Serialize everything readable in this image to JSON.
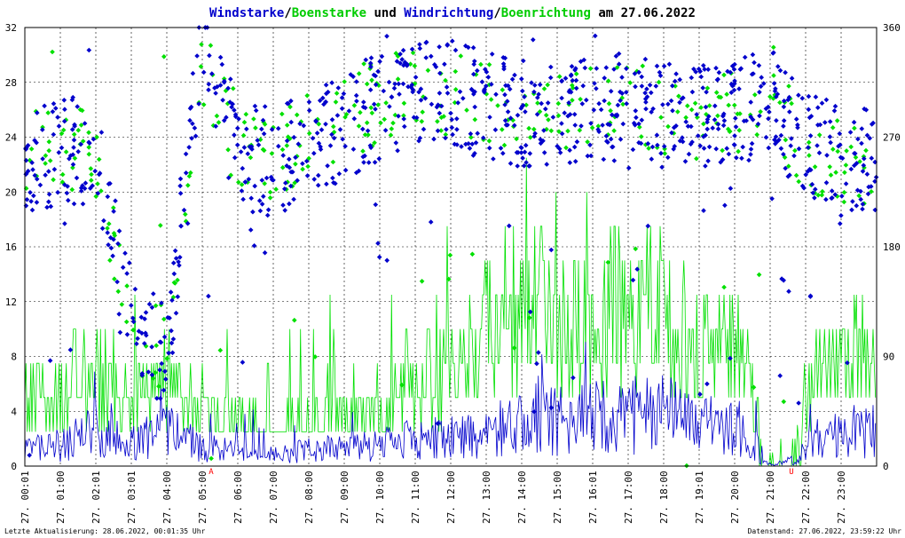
{
  "chart_data": {
    "type": "line",
    "title_parts": [
      {
        "text": "Windstarke",
        "color": "#0000cc"
      },
      {
        "text": "/",
        "color": "#000000"
      },
      {
        "text": "Boenstarke",
        "color": "#00cc00"
      },
      {
        "text": " und ",
        "color": "#000000"
      },
      {
        "text": "Windrichtung",
        "color": "#0000cc"
      },
      {
        "text": "/",
        "color": "#000000"
      },
      {
        "text": "Boenrichtung",
        "color": "#00cc00"
      },
      {
        "text": " am 27.06.2022",
        "color": "#000000"
      }
    ],
    "ylim": [
      0,
      32
    ],
    "y_ticks": [
      "0",
      "4",
      "8",
      "12",
      "16",
      "20",
      "24",
      "28",
      "32"
    ],
    "y2lim": [
      0,
      360
    ],
    "y2_ticks": [
      "0",
      "90",
      "180",
      "270",
      "360"
    ],
    "x_ticks": [
      "27. 00:01",
      "27. 01:00",
      "27. 02:01",
      "27. 03:01",
      "27. 04:00",
      "27. 05:00",
      "27. 06:00",
      "27. 07:00",
      "27. 08:00",
      "27. 09:00",
      "27. 10:00",
      "27. 11:00",
      "27. 12:00",
      "27. 13:00",
      "27. 14:00",
      "27. 15:00",
      "27. 16:01",
      "27. 17:00",
      "27. 18:00",
      "27. 19:01",
      "27. 20:00",
      "27. 21:00",
      "27. 22:00",
      "27. 23:00"
    ],
    "markers": [
      {
        "label": "A",
        "hour": 5.25,
        "color": "#ff0000"
      },
      {
        "label": "U",
        "hour": 21.6,
        "color": "#ff0000"
      }
    ],
    "grid": true,
    "colors": {
      "wind": "#0000cc",
      "gust": "#00e000"
    },
    "series": [
      {
        "name": "Windstarke",
        "kind": "line",
        "color": "#0000cc",
        "hourly_typical": [
          1.5,
          1.5,
          2.5,
          1.5,
          2.5,
          1.5,
          1.0,
          0.8,
          1.2,
          1.3,
          1.5,
          2.0,
          2.0,
          2.8,
          3.5,
          3.5,
          3.5,
          3.5,
          3.8,
          3.0,
          3.0,
          0.5,
          2.0,
          2.5
        ]
      },
      {
        "name": "Boenstarke",
        "kind": "line",
        "color": "#00e000",
        "hourly_typical": [
          4.5,
          5.5,
          7.0,
          5.0,
          6.0,
          4.5,
          3.0,
          2.5,
          3.5,
          4.0,
          4.5,
          6.5,
          7.0,
          9.5,
          11.5,
          10.5,
          10.5,
          12.0,
          11.0,
          9.0,
          9.0,
          1.5,
          6.5,
          7.5
        ]
      },
      {
        "name": "Windrichtung",
        "kind": "scatter",
        "color": "#0000cc",
        "hourly_typical_deg": [
          250,
          260,
          255,
          115,
          95,
          345,
          255,
          250,
          265,
          280,
          295,
          310,
          305,
          295,
          290,
          285,
          290,
          295,
          290,
          285,
          290,
          300,
          265,
          250
        ]
      },
      {
        "name": "Boenrichtung",
        "kind": "scatter",
        "color": "#00e000",
        "hourly_typical_deg": [
          255,
          265,
          255,
          115,
          95,
          335,
          255,
          255,
          270,
          285,
          300,
          310,
          305,
          300,
          290,
          285,
          300,
          300,
          290,
          280,
          290,
          300,
          260,
          250
        ]
      }
    ]
  },
  "footer": {
    "left": "Letzte Aktualisierung: 28.06.2022, 00:01:35 Uhr",
    "right": "Datenstand: 27.06.2022, 23:59:22 Uhr"
  }
}
